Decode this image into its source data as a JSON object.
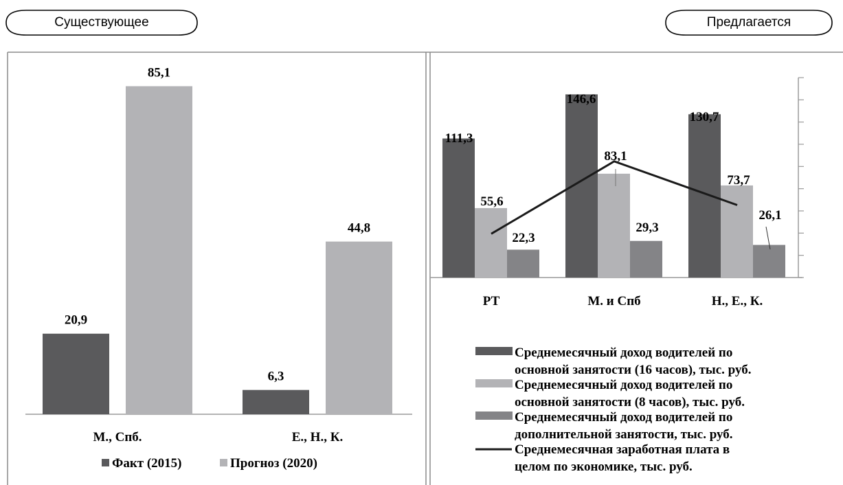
{
  "header": {
    "left_label": "Существующее",
    "right_label": "Предлагается"
  },
  "colors": {
    "dark_bar": "#5a5a5c",
    "light_bar": "#b3b3b6",
    "mid_bar": "#848487",
    "line": "#1a1a1a",
    "axis": "#9a9a9a",
    "panel_border": "#8a8a8a"
  },
  "chart_data": [
    {
      "type": "bar",
      "categories": [
        "М., Спб.",
        "Е., Н., К."
      ],
      "series": [
        {
          "name": "Факт (2015)",
          "values": [
            20.9,
            6.3
          ],
          "value_labels": [
            "20,9",
            "6,3"
          ],
          "color": "#5a5a5c"
        },
        {
          "name": "Прогноз (2020)",
          "values": [
            85.1,
            44.8
          ],
          "value_labels": [
            "85,1",
            "44,8"
          ],
          "color": "#b3b3b6"
        }
      ],
      "ylim": [
        0,
        90
      ],
      "legend_position": "bottom",
      "grid": false
    },
    {
      "type": "bar",
      "categories": [
        "РТ",
        "М. и Спб",
        "Н., Е., К."
      ],
      "series": [
        {
          "name": "Среднемесячный доход водителей по основной занятости (16 часов), тыс. руб.",
          "legend_lines": [
            "Среднемесячный доход водителей по",
            "основной занятости (16 часов), тыс. руб."
          ],
          "values": [
            111.3,
            146.6,
            130.7
          ],
          "value_labels": [
            "111,3",
            "146,6",
            "130,7"
          ],
          "color": "#5a5a5c"
        },
        {
          "name": "Среднемесячный доход водителей по основной занятости (8 часов), тыс. руб.",
          "legend_lines": [
            "Среднемесячный доход водителей по",
            "основной занятости (8 часов), тыс. руб."
          ],
          "values": [
            55.6,
            83.1,
            73.7
          ],
          "value_labels": [
            "55,6",
            "83,1",
            "73,7"
          ],
          "color": "#b3b3b6"
        },
        {
          "name": "Среднемесячный доход водителей по дополнительной занятости, тыс. руб.",
          "legend_lines": [
            "Среднемесячный доход водителей по",
            "дополнительной занятости, тыс. руб."
          ],
          "values": [
            22.3,
            29.3,
            26.1
          ],
          "value_labels": [
            "22,3",
            "29,3",
            "26,1"
          ],
          "color": "#848487"
        },
        {
          "name": "Среднемесячная заработная плата в целом по экономике, тыс. руб.",
          "legend_lines": [
            "Среднемесячная заработная плата в",
            "целом по экономике, тыс. руб."
          ],
          "type": "line",
          "values": [
            35.0,
            93.0,
            58.0
          ],
          "color": "#1a1a1a"
        }
      ],
      "ylim": [
        0,
        160
      ],
      "secondary_axis_ticks": 9,
      "legend_position": "bottom",
      "grid": false
    }
  ]
}
